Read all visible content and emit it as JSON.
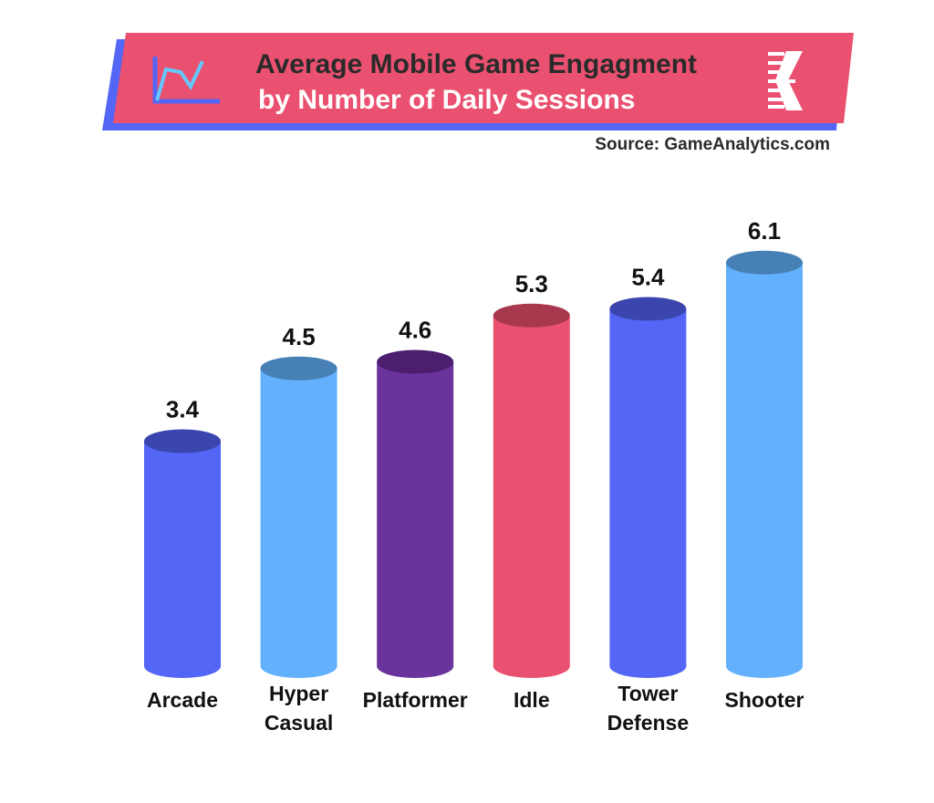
{
  "header": {
    "title_line1": "Average Mobile Game Engagment",
    "title_line2": "by Number of Daily Sessions",
    "source": "Source: GameAnalytics.com",
    "banner_color": "#EA5170",
    "shadow_color": "#5366F5"
  },
  "chart_data": {
    "type": "bar",
    "title": "Average Mobile Game Engagment by Number of Daily Sessions",
    "xlabel": "",
    "ylabel": "",
    "ylim": [
      0,
      6.1
    ],
    "grid": false,
    "categories": [
      [
        "Arcade"
      ],
      [
        "Hyper",
        "Casual"
      ],
      [
        "Platformer"
      ],
      [
        "Idle"
      ],
      [
        "Tower",
        "Defense"
      ],
      [
        "Shooter"
      ]
    ],
    "values": [
      3.4,
      4.5,
      4.6,
      5.3,
      5.4,
      6.1
    ],
    "value_labels": [
      "3.4",
      "4.5",
      "4.6",
      "5.3",
      "5.4",
      "6.1"
    ],
    "colors": [
      "#5366F5",
      "#63B1FD",
      "#6A349C",
      "#EA5170",
      "#5366F5",
      "#63B1FD"
    ],
    "top_colors": [
      "#3A46AE",
      "#4680B4",
      "#4B1E6E",
      "#A8384E",
      "#3A46AE",
      "#4680B4"
    ]
  }
}
